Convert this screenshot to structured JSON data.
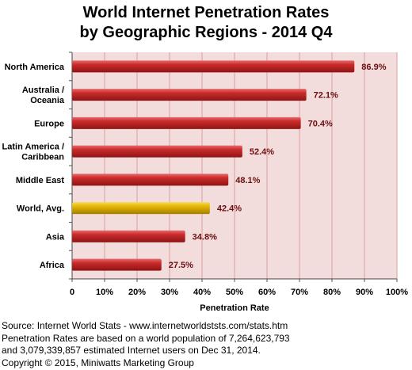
{
  "chart_data": {
    "type": "bar",
    "orientation": "horizontal",
    "title_line1": "World Internet Penetration Rates",
    "title_line2": "by Geographic Regions - 2014 Q4",
    "xlabel": "Penetration Rate",
    "xlim": [
      0,
      100
    ],
    "ticks": [
      "0",
      "10%",
      "20%",
      "30%",
      "40%",
      "50%",
      "60%",
      "70%",
      "80%",
      "90%",
      "100%"
    ],
    "tick_values": [
      0,
      10,
      20,
      30,
      40,
      50,
      60,
      70,
      80,
      90,
      100
    ],
    "categories": [
      [
        "North America"
      ],
      [
        "Australia /",
        "Oceania"
      ],
      [
        "Europe"
      ],
      [
        "Latin America /",
        "Caribbean"
      ],
      [
        "Middle East"
      ],
      [
        "World, Avg."
      ],
      [
        "Asia"
      ],
      [
        "Africa"
      ]
    ],
    "values": [
      86.9,
      72.1,
      70.4,
      52.4,
      48.1,
      42.4,
      34.8,
      27.5
    ],
    "value_labels": [
      "86.9%",
      "72.1%",
      "70.4%",
      "52.4%",
      "48.1%",
      "42.4%",
      "34.8%",
      "27.5%"
    ],
    "highlight_index": 5,
    "grid": true,
    "colors": {
      "bar": "#c0282a",
      "bar_highlight": "#e0b000",
      "plot_background": "#f3dcdc",
      "grid": "#d9a0a0",
      "value_label": "#6b0f0f"
    }
  },
  "footer": {
    "line1": "Source: Internet World Stats - www.internetworldststs.com/stats.htm",
    "line2": "Penetration Rates are based on a world population of 7,264,623,793",
    "line3": "and 3,079,339,857 estimated Internet users on Dec 31, 2014.",
    "line4": "Copyright © 2015, Miniwatts Marketing Group"
  }
}
